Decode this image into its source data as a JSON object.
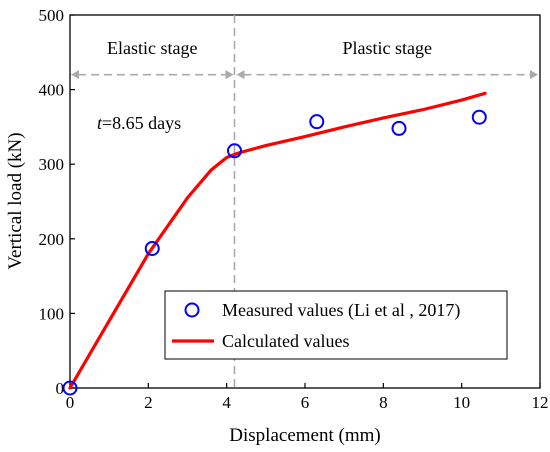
{
  "chart_data": {
    "type": "scatter",
    "xlabel": "Displacement (mm)",
    "ylabel": "Vertical load (kN)",
    "xlim": [
      0,
      12
    ],
    "ylim": [
      0,
      500
    ],
    "xticks": [
      0,
      2,
      4,
      6,
      8,
      10,
      12
    ],
    "yticks": [
      0,
      100,
      200,
      300,
      400,
      500
    ],
    "grid": false,
    "legend_position": "bottom-right",
    "divider_x": 4.2,
    "stage_arrow_y": 420,
    "annotations": {
      "elastic_stage": "Elastic stage",
      "plastic_stage": "Plastic stage",
      "time_var": "t",
      "time_value": "=8.65 days"
    },
    "series": [
      {
        "name": "Measured values (Li et al , 2017)",
        "kind": "scatter",
        "color": "#0000ff",
        "x": [
          0,
          2.1,
          4.2,
          6.3,
          8.4,
          10.45
        ],
        "y": [
          0,
          187,
          318,
          357,
          348,
          363
        ]
      },
      {
        "name": "Calculated values",
        "kind": "line",
        "color": "#ff0000",
        "x": [
          0,
          1.0,
          2.0,
          3.0,
          3.6,
          4.0,
          4.3,
          5.0,
          6.0,
          7.0,
          8.0,
          9.0,
          10.0,
          10.6
        ],
        "y": [
          0,
          90,
          180,
          255,
          292,
          309,
          315,
          325,
          337,
          350,
          362,
          373,
          386,
          395
        ]
      }
    ]
  }
}
